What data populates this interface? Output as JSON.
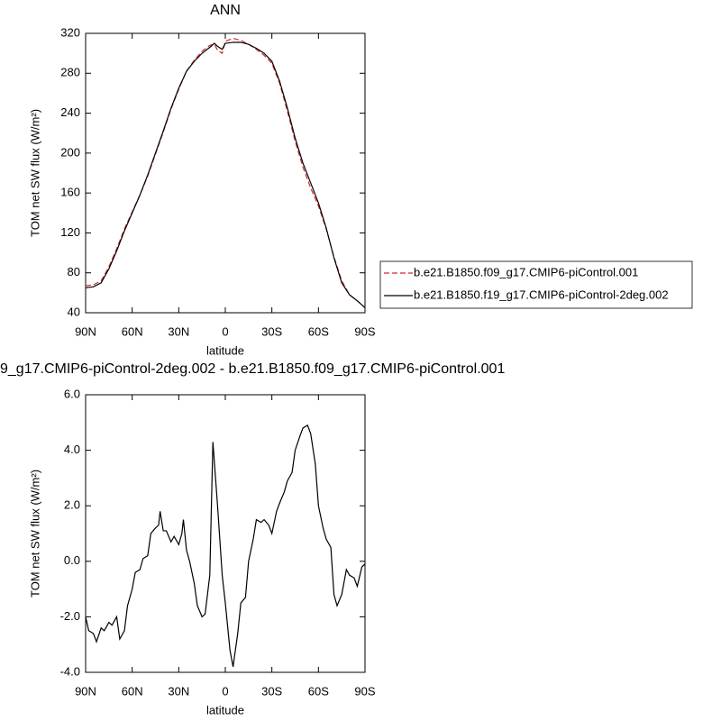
{
  "chart_data": [
    {
      "type": "line",
      "title": "ANN",
      "x_label": "latitude",
      "y_label": "TOM net SW flux (W/m²)",
      "x": [
        90,
        85,
        80,
        75,
        70,
        65,
        60,
        55,
        50,
        45,
        40,
        35,
        30,
        25,
        20,
        15,
        10,
        7,
        5,
        2,
        0,
        -5,
        -10,
        -15,
        -20,
        -25,
        -30,
        -35,
        -40,
        -45,
        -50,
        -55,
        -60,
        -65,
        -70,
        -75,
        -80,
        -85,
        -90
      ],
      "series": [
        {
          "name": "b.e21.B1850.f09_g17.CMIP6-piControl.001",
          "color": "#d62728",
          "line_style": "dashed",
          "values": [
            67,
            68,
            72,
            86,
            104,
            124,
            141,
            158,
            177,
            199,
            221,
            244,
            264,
            282,
            293,
            302,
            308,
            309,
            303,
            300,
            312,
            315,
            313,
            309,
            304,
            298,
            290,
            270,
            242,
            212,
            186,
            165,
            147,
            124,
            96,
            72,
            58,
            52,
            45
          ]
        },
        {
          "name": "b.e21.B1850.f19_g17.CMIP6-piControl-2deg.002",
          "color": "#000000",
          "line_style": "solid",
          "values": [
            65,
            66,
            70,
            84,
            102,
            122,
            140,
            158,
            178,
            200,
            222,
            245,
            265,
            282,
            292,
            300,
            306,
            310,
            307,
            304,
            310,
            311,
            311,
            309,
            305,
            300,
            292,
            272,
            245,
            215,
            190,
            170,
            150,
            125,
            95,
            70,
            58,
            52,
            45
          ]
        }
      ],
      "xlim": [
        90,
        -90
      ],
      "xticks": [
        {
          "value": 90,
          "label": "90N"
        },
        {
          "value": 60,
          "label": "60N"
        },
        {
          "value": 30,
          "label": "30N"
        },
        0,
        {
          "value": -30,
          "label": "30S"
        },
        {
          "value": -60,
          "label": "60S"
        },
        {
          "value": -90,
          "label": "90S"
        }
      ],
      "ylim": [
        40,
        320
      ],
      "yticks": [
        40,
        80,
        120,
        160,
        200,
        240,
        280,
        320
      ],
      "legend": "right"
    },
    {
      "type": "line",
      "title": "9_g17.CMIP6-piControl-2deg.002 - b.e21.B1850.f09_g17.CMIP6-piControl.001",
      "x_label": "latitude",
      "y_label": "TOM net SW flux (W/m²)",
      "x": [
        90,
        88,
        85,
        83,
        80,
        78,
        75,
        73,
        70,
        68,
        65,
        63,
        60,
        58,
        55,
        53,
        50,
        48,
        45,
        43,
        42,
        40,
        38,
        35,
        33,
        30,
        28,
        27,
        25,
        23,
        20,
        18,
        15,
        13,
        10,
        8,
        5,
        2,
        0,
        -3,
        -5,
        -8,
        -10,
        -13,
        -15,
        -18,
        -20,
        -23,
        -25,
        -28,
        -30,
        -33,
        -35,
        -38,
        -40,
        -43,
        -45,
        -48,
        -50,
        -53,
        -55,
        -58,
        -60,
        -63,
        -65,
        -68,
        -70,
        -72,
        -75,
        -78,
        -80,
        -83,
        -85,
        -88,
        -90
      ],
      "series": [
        {
          "name": null,
          "color": "#000000",
          "line_style": "solid",
          "values": [
            -2.0,
            -2.5,
            -2.6,
            -2.9,
            -2.4,
            -2.5,
            -2.2,
            -2.3,
            -2.0,
            -2.8,
            -2.5,
            -1.6,
            -1.0,
            -0.4,
            -0.3,
            0.1,
            0.2,
            1.0,
            1.2,
            1.3,
            1.8,
            1.1,
            1.1,
            0.7,
            0.9,
            0.6,
            1.0,
            1.5,
            0.4,
            0.0,
            -0.8,
            -1.6,
            -2.0,
            -1.9,
            -0.5,
            4.3,
            2.0,
            -0.5,
            -1.5,
            -3.2,
            -3.8,
            -2.6,
            -1.5,
            -1.3,
            0.0,
            0.8,
            1.5,
            1.4,
            1.5,
            1.3,
            1.0,
            1.8,
            2.1,
            2.5,
            2.9,
            3.2,
            4.0,
            4.5,
            4.8,
            4.9,
            4.6,
            3.5,
            2.0,
            1.2,
            0.8,
            0.5,
            -1.2,
            -1.6,
            -1.2,
            -0.3,
            -0.5,
            -0.6,
            -0.9,
            -0.2,
            -0.1
          ]
        }
      ],
      "xlim": [
        90,
        -90
      ],
      "xticks": [
        {
          "value": 90,
          "label": "90N"
        },
        {
          "value": 60,
          "label": "60N"
        },
        {
          "value": 30,
          "label": "30N"
        },
        0,
        {
          "value": -30,
          "label": "30S"
        },
        {
          "value": -60,
          "label": "60S"
        },
        {
          "value": -90,
          "label": "90S"
        }
      ],
      "ylim": [
        -4,
        6
      ],
      "yticks": [
        {
          "value": -4,
          "label": "-4.0"
        },
        {
          "value": -2,
          "label": "-2.0"
        },
        {
          "value": 0,
          "label": "0.0"
        },
        {
          "value": 2,
          "label": "2.0"
        },
        {
          "value": 4,
          "label": "4.0"
        },
        {
          "value": 6,
          "label": "6.0"
        }
      ]
    }
  ]
}
